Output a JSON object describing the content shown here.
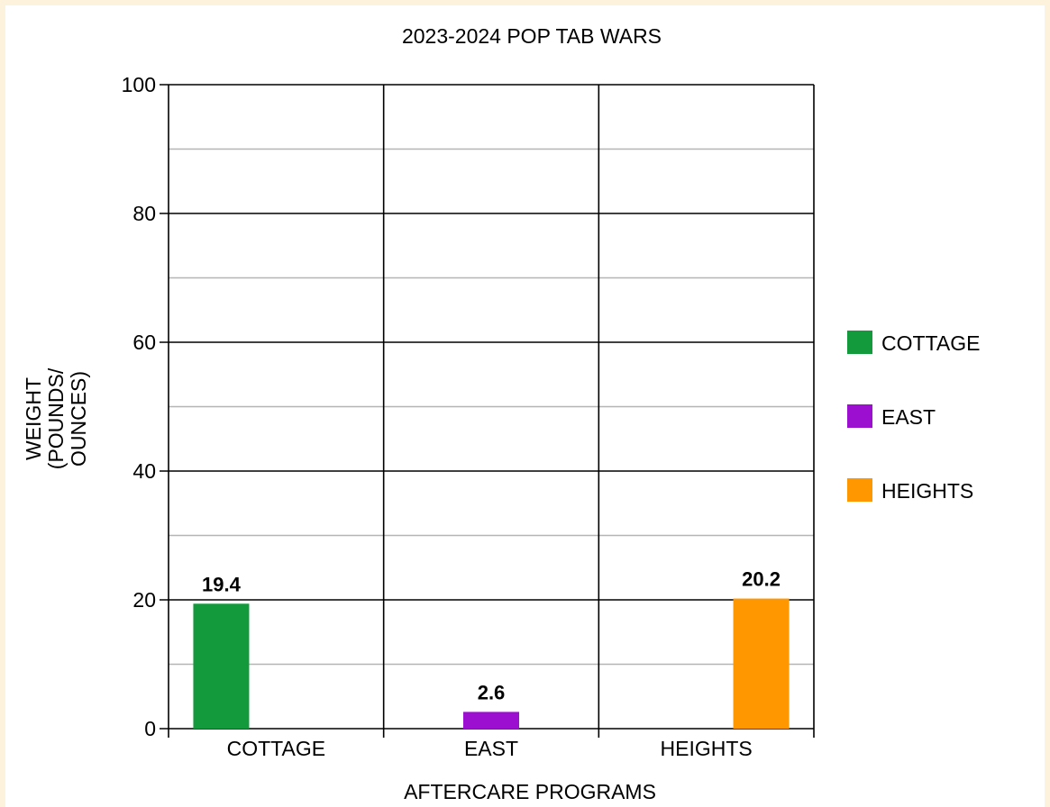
{
  "chart_data": {
    "type": "bar",
    "title": "2023-2024 POP TAB WARS",
    "xlabel": "AFTERCARE PROGRAMS",
    "ylabel_lines": [
      "WEIGHT",
      "(POUNDS/",
      "OUNCES)"
    ],
    "categories": [
      "COTTAGE",
      "EAST",
      "HEIGHTS"
    ],
    "series": [
      {
        "name": "COTTAGE",
        "color": "#129a3c",
        "values": [
          19.4,
          null,
          null
        ]
      },
      {
        "name": "EAST",
        "color": "#9c0fd0",
        "values": [
          null,
          2.6,
          null
        ]
      },
      {
        "name": "HEIGHTS",
        "color": "#ff9800",
        "values": [
          null,
          null,
          20.2
        ]
      }
    ],
    "data_labels": [
      "19.4",
      "2.6",
      "20.2"
    ],
    "ylim": [
      0,
      100
    ],
    "yticks": [
      0,
      20,
      40,
      60,
      80,
      100
    ],
    "ytick_labels": [
      "0",
      "20",
      "40",
      "60",
      "80",
      "100"
    ],
    "grid": true,
    "legend_position": "right"
  }
}
